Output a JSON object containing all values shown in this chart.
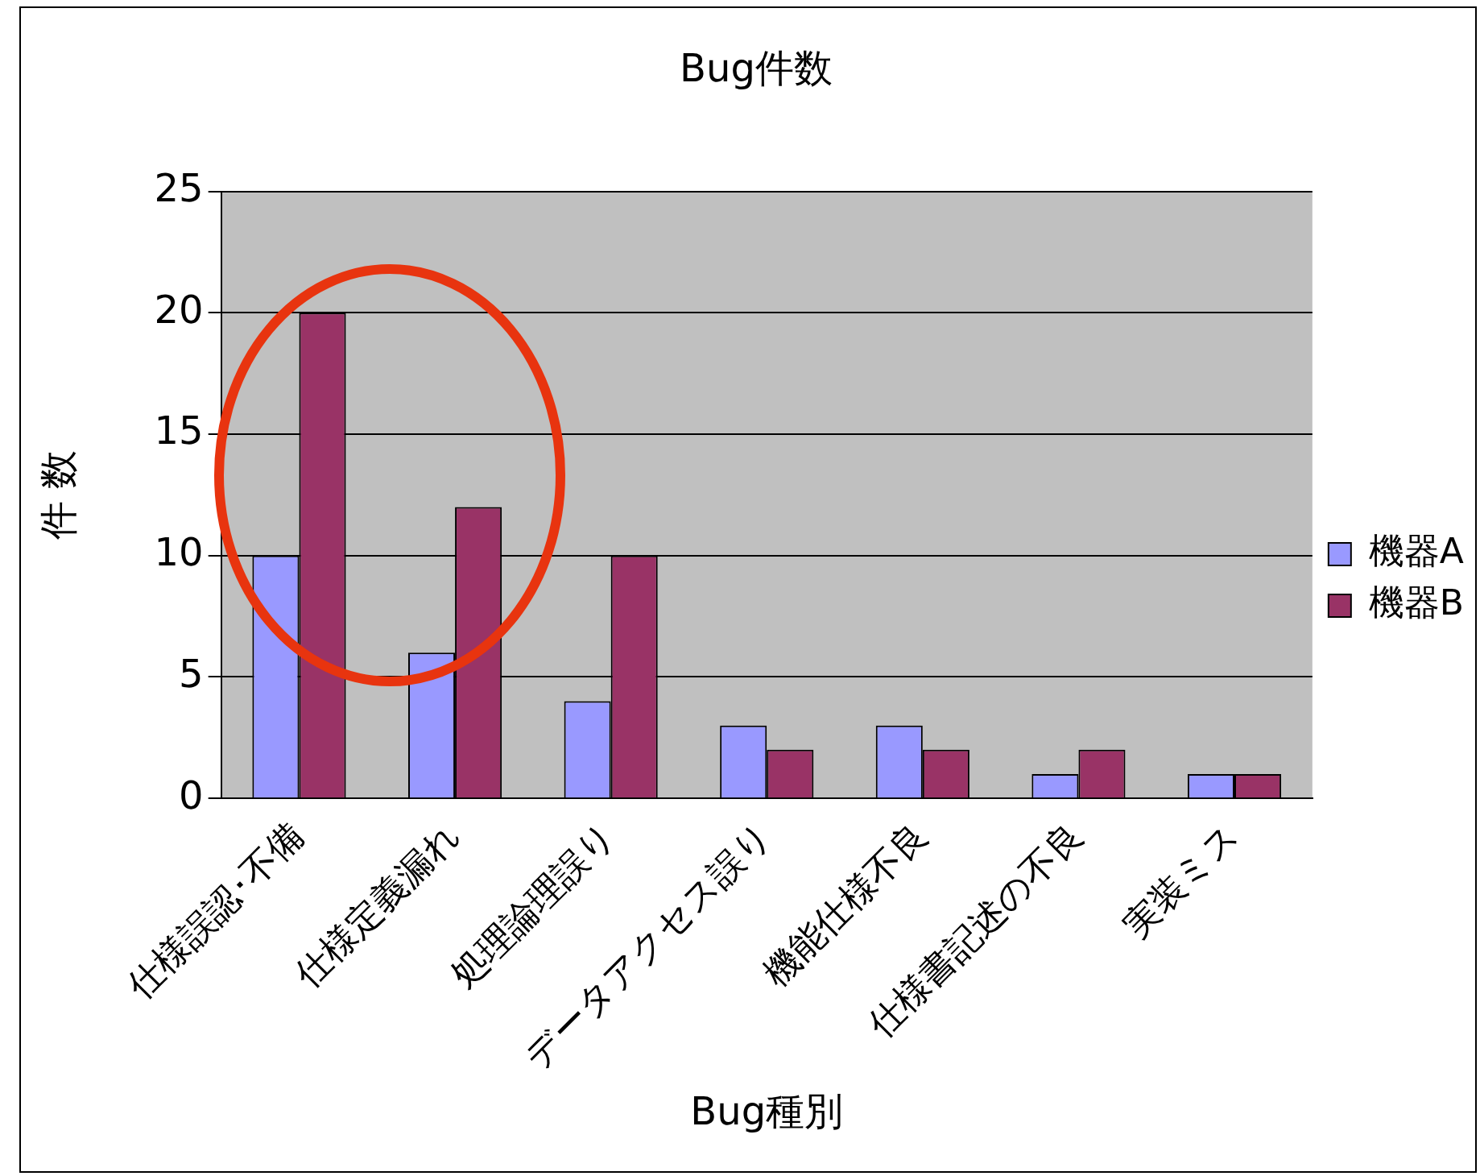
{
  "chart_data": {
    "type": "bar",
    "title": "Bug件数",
    "xlabel": "Bug種別",
    "ylabel": "件 数",
    "categories": [
      "仕様誤認･不備",
      "仕様定義漏れ",
      "処理論理誤り",
      "データアクセス誤り",
      "機能仕様不良",
      "仕様書記述の不良",
      "実装ミス"
    ],
    "series": [
      {
        "name": "機器A",
        "color": "#9999ff",
        "values": [
          10,
          6,
          4,
          3,
          3,
          1,
          1
        ]
      },
      {
        "name": "機器B",
        "color": "#993366",
        "values": [
          20,
          12,
          10,
          2,
          2,
          2,
          1
        ]
      }
    ],
    "ylim": [
      0,
      25
    ],
    "yticks": [
      0,
      5,
      10,
      15,
      20,
      25
    ],
    "grid": "y",
    "legend": "right"
  }
}
